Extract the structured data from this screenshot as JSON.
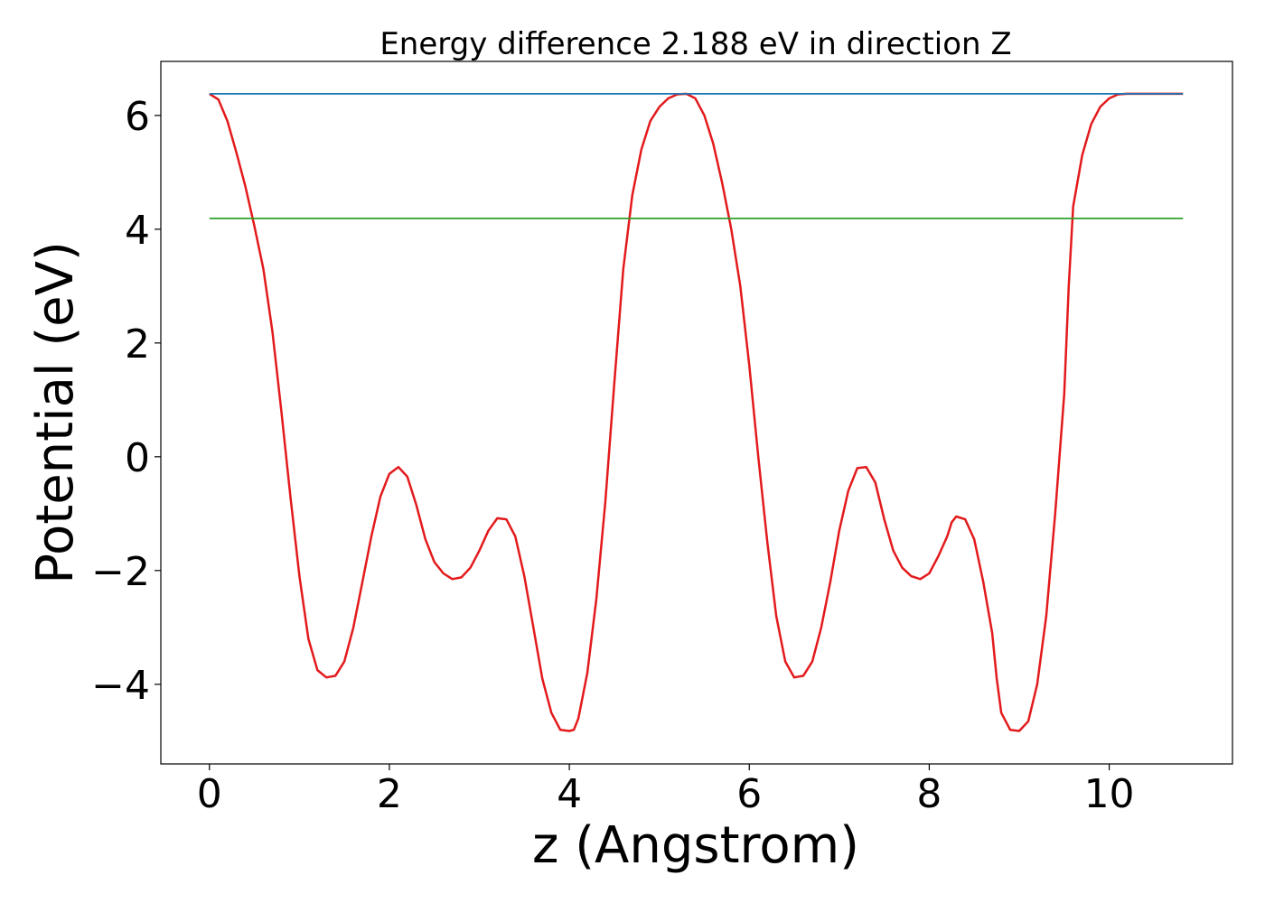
{
  "chart_data": {
    "type": "line",
    "title": "Energy difference 2.188 eV in direction Z",
    "xlabel": "z (Angstrom)",
    "ylabel": "Potential (eV)",
    "xlim": [
      -0.54,
      11.37
    ],
    "ylim": [
      -5.4,
      6.95
    ],
    "xticks": [
      0,
      2,
      4,
      6,
      8,
      10
    ],
    "xtick_labels": [
      "0",
      "2",
      "4",
      "6",
      "8",
      "10"
    ],
    "yticks": [
      -4,
      -2,
      0,
      2,
      4,
      6
    ],
    "ytick_labels": [
      "−4",
      "−2",
      "0",
      "2",
      "4",
      "6"
    ],
    "grid": false,
    "legend": "none",
    "series": [
      {
        "color": "#e31a1c",
        "x": [
          0,
          0.1,
          0.2,
          0.3,
          0.4,
          0.5,
          0.6,
          0.7,
          0.8,
          0.9,
          1.0,
          1.1,
          1.2,
          1.3,
          1.4,
          1.5,
          1.6,
          1.7,
          1.8,
          1.9,
          2.0,
          2.1,
          2.2,
          2.3,
          2.4,
          2.5,
          2.6,
          2.7,
          2.8,
          2.9,
          3.0,
          3.1,
          3.2,
          3.3,
          3.4,
          3.5,
          3.6,
          3.7,
          3.8,
          3.9,
          4.0,
          4.05,
          4.1,
          4.2,
          4.3,
          4.4,
          4.5,
          4.6,
          4.7,
          4.8,
          4.9,
          5.0,
          5.1,
          5.2,
          5.3,
          5.4,
          5.5,
          5.6,
          5.7,
          5.8,
          5.9,
          6.0,
          6.1,
          6.2,
          6.3,
          6.4,
          6.5,
          6.6,
          6.7,
          6.8,
          6.85,
          6.9,
          7.0,
          7.1,
          7.2,
          7.3,
          7.4,
          7.5,
          7.6,
          7.7,
          7.8,
          7.9,
          8.0,
          8.1,
          8.2,
          8.25,
          8.3,
          8.4,
          8.5,
          8.6,
          8.7,
          8.75,
          8.8,
          8.9,
          9.0,
          9.1,
          9.2,
          9.3,
          9.4,
          9.5,
          9.55,
          9.6,
          9.7,
          9.8,
          9.9,
          10.0,
          10.1,
          10.2,
          10.3,
          10.4,
          10.5,
          10.6,
          10.7,
          10.8,
          10.82
        ],
        "y": [
          6.38,
          6.28,
          5.9,
          5.35,
          4.75,
          4.05,
          3.3,
          2.2,
          0.8,
          -0.7,
          -2.1,
          -3.2,
          -3.75,
          -3.88,
          -3.85,
          -3.6,
          -3.0,
          -2.2,
          -1.4,
          -0.7,
          -0.3,
          -0.18,
          -0.35,
          -0.85,
          -1.45,
          -1.85,
          -2.05,
          -2.15,
          -2.12,
          -1.95,
          -1.65,
          -1.3,
          -1.08,
          -1.1,
          -1.4,
          -2.1,
          -3.0,
          -3.9,
          -4.5,
          -4.8,
          -4.82,
          -4.8,
          -4.6,
          -3.8,
          -2.5,
          -0.8,
          1.3,
          3.3,
          4.6,
          5.4,
          5.9,
          6.15,
          6.3,
          6.37,
          6.38,
          6.3,
          6.0,
          5.5,
          4.8,
          4.0,
          3.0,
          1.6,
          0.0,
          -1.5,
          -2.8,
          -3.6,
          -3.88,
          -3.85,
          -3.6,
          -3.0,
          -2.6,
          -2.2,
          -1.3,
          -0.6,
          -0.2,
          -0.18,
          -0.45,
          -1.1,
          -1.65,
          -1.95,
          -2.1,
          -2.15,
          -2.05,
          -1.75,
          -1.4,
          -1.15,
          -1.05,
          -1.1,
          -1.45,
          -2.2,
          -3.1,
          -3.9,
          -4.5,
          -4.8,
          -4.82,
          -4.65,
          -4.0,
          -2.8,
          -1.0,
          1.1,
          3.0,
          4.4,
          5.3,
          5.85,
          6.15,
          6.3,
          6.37,
          6.38,
          6.38,
          6.38,
          6.38,
          6.38,
          6.38,
          6.38,
          6.38
        ]
      },
      {
        "color": "#1f77b4",
        "x": [
          0,
          10.82
        ],
        "y": [
          6.38,
          6.38
        ]
      },
      {
        "color": "#2ca02c",
        "x": [
          0,
          10.82
        ],
        "y": [
          4.19,
          4.19
        ]
      }
    ]
  }
}
